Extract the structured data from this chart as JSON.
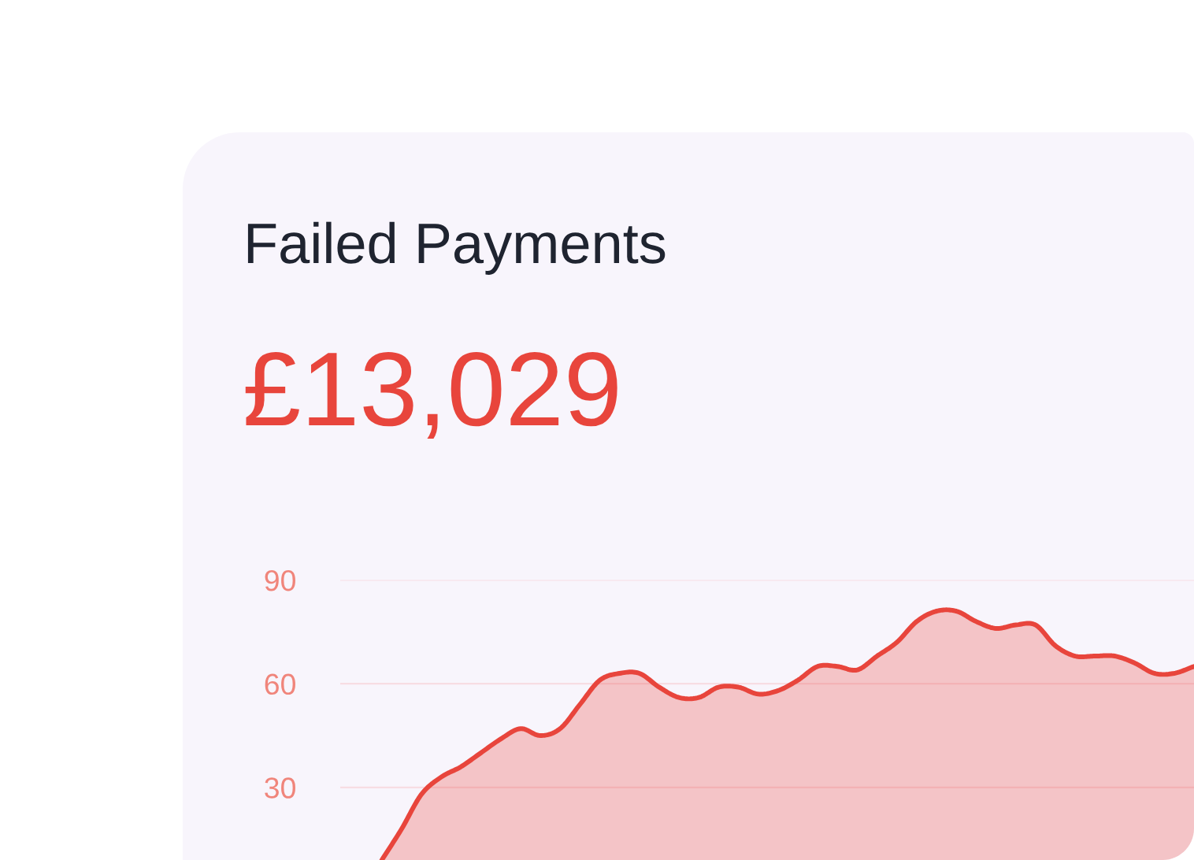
{
  "chart_data": {
    "type": "area",
    "title": "Failed Payments",
    "subtitle": "£13,029",
    "categories": [
      null,
      null,
      null,
      null,
      null,
      null,
      null,
      null,
      null,
      null,
      null,
      null,
      null,
      null,
      null,
      null,
      null,
      null,
      null,
      null,
      null,
      null,
      null,
      null,
      null,
      null,
      null,
      null,
      null,
      null,
      null,
      null,
      null,
      null,
      null,
      null,
      null,
      null,
      null,
      null,
      null,
      null
    ],
    "series": [
      {
        "color": "#e8453c",
        "values": [
          9,
          18,
          28,
          33,
          36,
          40,
          44,
          47,
          45,
          47,
          54,
          61,
          63,
          63,
          59,
          56,
          56,
          59,
          59,
          57,
          58,
          61,
          65,
          65,
          64,
          68,
          72,
          78,
          81,
          81,
          78,
          76,
          77,
          77,
          71,
          68,
          68,
          68,
          66,
          63,
          63,
          65
        ]
      }
    ],
    "ylim": [
      9,
      90
    ],
    "yticks": [
      30,
      60,
      90
    ],
    "grid": "y",
    "tick_labels": "y"
  }
}
